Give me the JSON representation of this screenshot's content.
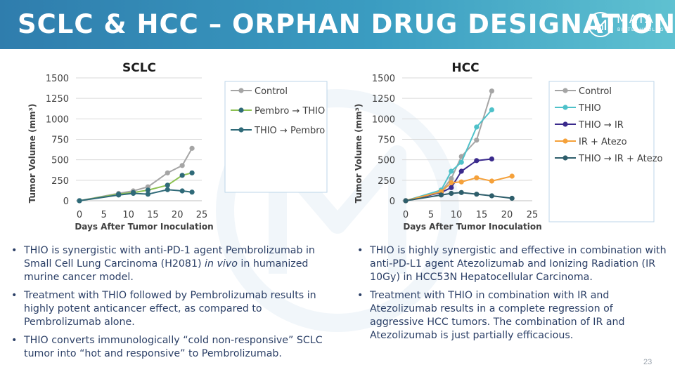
{
  "slide": {
    "title": "SCLC & HCC – ORPHAN DRUG DESIGNATION",
    "page_number": "23",
    "logo": {
      "name": "MAIA",
      "sub": "BIOTECHNOLOGY",
      "icon": "maia-logo-icon"
    }
  },
  "colors": {
    "header_start": "#2f7dad",
    "header_end": "#5fc1d1",
    "text": "#2b3f66",
    "control": "#a5a5a5",
    "green": "#8cc152",
    "teal": "#2f6a78",
    "cyan": "#4ec1c9",
    "purple": "#3a2a8c",
    "orange": "#f5a13a",
    "dark_teal": "#2e5e6b"
  },
  "chart_data": [
    {
      "type": "line",
      "title": "SCLC",
      "xlabel": "Days After Tumor Inoculation",
      "ylabel": "Tumor Volume (mm³)",
      "xlim": [
        0,
        25
      ],
      "ylim": [
        0,
        1500
      ],
      "xticks": [
        "0",
        "5",
        "10",
        "15",
        "20",
        "25"
      ],
      "yticks": [
        "0",
        "250",
        "500",
        "750",
        "1000",
        "1250",
        "1500"
      ],
      "legend_position": "top-right",
      "series": [
        {
          "name": "Control",
          "color": "#a5a5a5",
          "line": "#a5a5a5",
          "x": [
            0,
            8,
            11,
            14,
            18,
            21,
            23
          ],
          "y": [
            0,
            90,
            120,
            170,
            340,
            430,
            640
          ]
        },
        {
          "name": "Pembro → THIO",
          "color": "#2f6a78",
          "line": "#8cc152",
          "x": [
            0,
            8,
            11,
            14,
            18,
            21,
            23
          ],
          "y": [
            0,
            80,
            100,
            130,
            190,
            310,
            340
          ]
        },
        {
          "name": "THIO → Pembro",
          "color": "#2f6a78",
          "line": "#2f6a78",
          "x": [
            0,
            8,
            11,
            14,
            18,
            21,
            23
          ],
          "y": [
            0,
            70,
            90,
            80,
            135,
            120,
            105
          ]
        }
      ]
    },
    {
      "type": "line",
      "title": "HCC",
      "xlabel": "Days After Tumor Inoculation",
      "ylabel": "Tumor Volume (mm³)",
      "xlim": [
        0,
        25
      ],
      "ylim": [
        0,
        1500
      ],
      "xticks": [
        "0",
        "5",
        "10",
        "15",
        "20",
        "25"
      ],
      "yticks": [
        "0",
        "250",
        "500",
        "750",
        "1000",
        "1250",
        "1500"
      ],
      "legend_position": "top-right",
      "series": [
        {
          "name": "Control",
          "color": "#a5a5a5",
          "line": "#a5a5a5",
          "x": [
            0,
            7,
            9,
            11,
            14,
            17
          ],
          "y": [
            0,
            110,
            270,
            540,
            740,
            1340
          ]
        },
        {
          "name": "THIO",
          "color": "#4ec1c9",
          "line": "#4ec1c9",
          "x": [
            0,
            7,
            9,
            11,
            14,
            17
          ],
          "y": [
            0,
            130,
            360,
            470,
            900,
            1110
          ]
        },
        {
          "name": "THIO → IR",
          "color": "#3a2a8c",
          "line": "#3a2a8c",
          "x": [
            0,
            7,
            9,
            11,
            14,
            17
          ],
          "y": [
            0,
            100,
            160,
            360,
            490,
            510
          ]
        },
        {
          "name": "IR + Atezo",
          "color": "#f5a13a",
          "line": "#f5a13a",
          "x": [
            0,
            7,
            9,
            11,
            14,
            17,
            21
          ],
          "y": [
            0,
            110,
            220,
            230,
            280,
            240,
            300
          ]
        },
        {
          "name": "THIO → IR + Atezo",
          "color": "#2e5e6b",
          "line": "#2e5e6b",
          "x": [
            0,
            7,
            9,
            11,
            14,
            17,
            21
          ],
          "y": [
            0,
            70,
            90,
            100,
            80,
            60,
            30
          ]
        }
      ]
    }
  ],
  "left_bullets": [
    {
      "before": "THIO is synergistic with anti-PD-1 agent Pembrolizumab in Small Cell Lung Carcinoma (H2081) ",
      "italic": "in vivo",
      "after": " in humanized murine cancer model."
    },
    {
      "text": "Treatment with THIO followed by Pembrolizumab results in highly potent anticancer effect, as compared to Pembrolizumab alone."
    },
    {
      "text": "THIO converts immunologically “cold non-responsive” SCLC tumor into “hot and responsive” to Pembrolizumab."
    }
  ],
  "right_bullets": [
    {
      "text": "THIO is highly synergistic and effective in combination with anti-PD-L1 agent Atezolizumab and Ionizing Radiation (IR 10Gy) in HCC53N Hepatocellular Carcinoma."
    },
    {
      "text": "Treatment with THIO in combination with IR and Atezolizumab results in a complete regression of aggressive HCC tumors. The combination of IR and Atezolizumab is just partially efficacious."
    }
  ]
}
